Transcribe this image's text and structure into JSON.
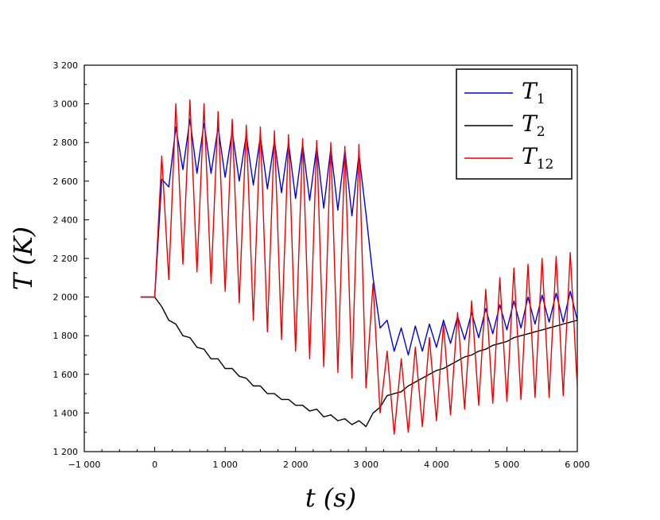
{
  "chart_data": {
    "type": "line",
    "title": "",
    "xlabel_symbol": "t",
    "xlabel_unit": "(s)",
    "ylabel_symbol": "T",
    "ylabel_unit": "(K)",
    "xlim": [
      -1000,
      6000
    ],
    "ylim": [
      1200,
      3200
    ],
    "xticks": [
      -1000,
      0,
      1000,
      2000,
      3000,
      4000,
      5000,
      6000
    ],
    "xtick_labels": [
      "−1 000",
      "0",
      "1 000",
      "2 000",
      "3 000",
      "4 000",
      "5 000",
      "6 000"
    ],
    "yticks": [
      1200,
      1400,
      1600,
      1800,
      2000,
      2200,
      2400,
      2600,
      2800,
      3000,
      3200
    ],
    "ytick_labels": [
      "1 200",
      "1 400",
      "1 600",
      "1 800",
      "2 000",
      "2 200",
      "2 400",
      "2 600",
      "2 800",
      "3 000",
      "3 200"
    ],
    "legend_position": "top-right",
    "series": [
      {
        "name": "T1",
        "label_base": "T",
        "label_sub": "1",
        "color": "#0000dd",
        "x": [
          -200,
          0,
          100,
          200,
          300,
          400,
          500,
          600,
          700,
          800,
          900,
          1000,
          1100,
          1200,
          1300,
          1400,
          1500,
          1600,
          1700,
          1800,
          1900,
          2000,
          2100,
          2200,
          2300,
          2400,
          2500,
          2600,
          2700,
          2800,
          2900,
          3000,
          3100,
          3200,
          3300,
          3400,
          3500,
          3600,
          3700,
          3800,
          3900,
          4000,
          4100,
          4200,
          4300,
          4400,
          4500,
          4600,
          4700,
          4800,
          4900,
          5000,
          5100,
          5200,
          5300,
          5400,
          5500,
          5600,
          5700,
          5800,
          5900,
          6000
        ],
        "values": [
          2000,
          2000,
          2610,
          2570,
          2880,
          2660,
          2920,
          2640,
          2900,
          2640,
          2880,
          2620,
          2860,
          2600,
          2840,
          2580,
          2830,
          2560,
          2810,
          2540,
          2800,
          2510,
          2790,
          2500,
          2780,
          2460,
          2770,
          2450,
          2760,
          2420,
          2740,
          2430,
          2100,
          1840,
          1880,
          1720,
          1840,
          1700,
          1850,
          1720,
          1860,
          1740,
          1880,
          1760,
          1900,
          1780,
          1920,
          1790,
          1940,
          1810,
          1960,
          1830,
          1980,
          1840,
          2000,
          1860,
          2010,
          1870,
          2020,
          1870,
          2030,
          1880
        ]
      },
      {
        "name": "T2",
        "label_base": "T",
        "label_sub": "2",
        "color": "#000000",
        "x": [
          -200,
          0,
          100,
          200,
          300,
          400,
          500,
          600,
          700,
          800,
          900,
          1000,
          1100,
          1200,
          1300,
          1400,
          1500,
          1600,
          1700,
          1800,
          1900,
          2000,
          2100,
          2200,
          2300,
          2400,
          2500,
          2600,
          2700,
          2800,
          2900,
          3000,
          3100,
          3200,
          3300,
          3400,
          3500,
          3600,
          3700,
          3800,
          3900,
          4000,
          4100,
          4200,
          4300,
          4400,
          4500,
          4600,
          4700,
          4800,
          4900,
          5000,
          5100,
          5200,
          5300,
          5400,
          5500,
          5600,
          5700,
          5800,
          5900,
          6000
        ],
        "values": [
          2000,
          2000,
          1950,
          1880,
          1860,
          1800,
          1790,
          1740,
          1730,
          1680,
          1680,
          1630,
          1630,
          1590,
          1580,
          1540,
          1540,
          1500,
          1500,
          1470,
          1470,
          1440,
          1440,
          1410,
          1420,
          1380,
          1390,
          1360,
          1370,
          1340,
          1360,
          1330,
          1400,
          1430,
          1490,
          1500,
          1510,
          1540,
          1560,
          1580,
          1600,
          1620,
          1630,
          1650,
          1670,
          1690,
          1700,
          1720,
          1730,
          1750,
          1760,
          1770,
          1790,
          1800,
          1810,
          1820,
          1830,
          1840,
          1850,
          1860,
          1870,
          1880
        ]
      },
      {
        "name": "T12",
        "label_base": "T",
        "label_sub": "12",
        "color": "#ee0000",
        "x": [
          -200,
          0,
          100,
          200,
          300,
          400,
          500,
          600,
          700,
          800,
          900,
          1000,
          1100,
          1200,
          1300,
          1400,
          1500,
          1600,
          1700,
          1800,
          1900,
          2000,
          2100,
          2200,
          2300,
          2400,
          2500,
          2600,
          2700,
          2800,
          2900,
          3000,
          3100,
          3200,
          3300,
          3400,
          3500,
          3600,
          3700,
          3800,
          3900,
          4000,
          4100,
          4200,
          4300,
          4400,
          4500,
          4600,
          4700,
          4800,
          4900,
          5000,
          5100,
          5200,
          5300,
          5400,
          5500,
          5600,
          5700,
          5800,
          5900,
          6000
        ],
        "values": [
          2000,
          2000,
          2730,
          2090,
          3000,
          2170,
          3020,
          2130,
          3000,
          2070,
          2960,
          2030,
          2920,
          1970,
          2890,
          1880,
          2880,
          1820,
          2860,
          1780,
          2840,
          1720,
          2820,
          1680,
          2810,
          1640,
          2800,
          1610,
          2780,
          1580,
          2790,
          1530,
          2070,
          1400,
          1720,
          1290,
          1680,
          1300,
          1740,
          1330,
          1790,
          1360,
          1860,
          1390,
          1920,
          1420,
          1980,
          1440,
          2040,
          1450,
          2100,
          1460,
          2150,
          1470,
          2170,
          1480,
          2200,
          1480,
          2210,
          1490,
          2230,
          1530
        ]
      }
    ]
  }
}
